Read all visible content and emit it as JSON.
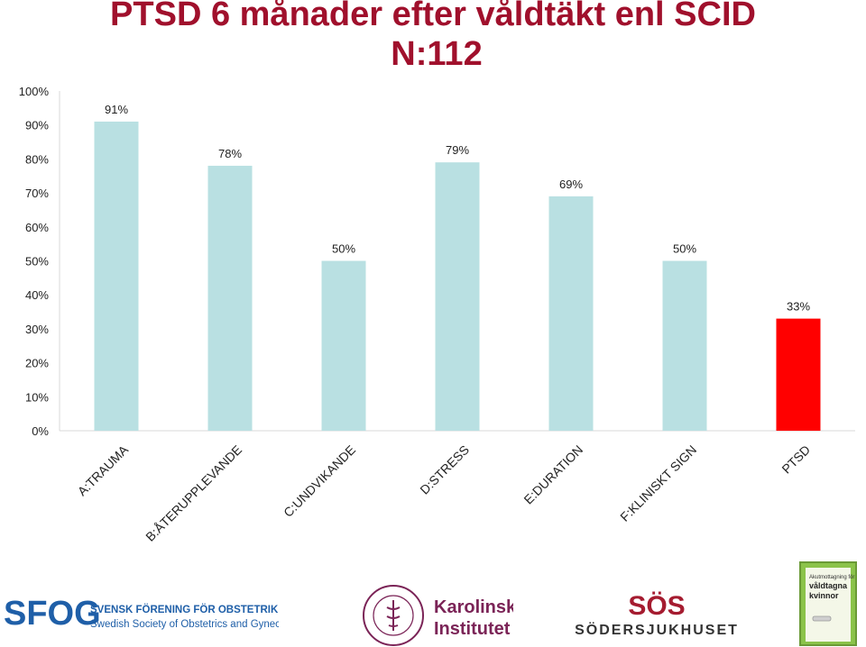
{
  "title": {
    "line1": "PTSD 6 månader efter våldtäkt enl SCID",
    "line2": "N:112"
  },
  "colors": {
    "title": "#a0102c",
    "bar_default": "#b9e0e2",
    "bar_highlight": "#ff0000",
    "gridline": "#d9d9d9"
  },
  "chart_data": {
    "type": "bar",
    "title": "PTSD 6 månader efter våldtäkt enl SCID N:112",
    "categories": [
      "A:TRAUMA",
      "B:ÅTERUPPLEVANDE",
      "C:UNDVIKANDE",
      "D:STRESS",
      "E:DURATION",
      "F:KLINISKT SIGN",
      "PTSD"
    ],
    "values": [
      91,
      78,
      50,
      79,
      69,
      50,
      33
    ],
    "value_labels": [
      "91%",
      "78%",
      "50%",
      "79%",
      "69%",
      "50%",
      "33%"
    ],
    "highlight_index": 6,
    "ylim": [
      0,
      100
    ],
    "yticks": [
      0,
      10,
      20,
      30,
      40,
      50,
      60,
      70,
      80,
      90,
      100
    ],
    "ytick_labels": [
      "0%",
      "10%",
      "20%",
      "30%",
      "40%",
      "50%",
      "60%",
      "70%",
      "80%",
      "90%",
      "100%"
    ],
    "xlabel": "",
    "ylabel": "",
    "grid": false,
    "legend": "none"
  },
  "logos": {
    "sfog": {
      "mark": "SFOG",
      "line1": "SVENSK FÖRENING FÖR OBSTETRIK & GYNEKOLOGI",
      "line2": "Swedish Society of Obstetrics and Gynecology"
    },
    "ki": {
      "seal": "KAROLINSKA INSTITUTET ANNO 1810",
      "line1": "Karolinska",
      "line2": "Institutet"
    },
    "sos": {
      "mark": "SÖS",
      "name": "SÖDERSJUKHUSET"
    },
    "akut": {
      "line1": "Akutmottagning för",
      "line2": "våldtagna",
      "line3": "kvinnor"
    }
  }
}
